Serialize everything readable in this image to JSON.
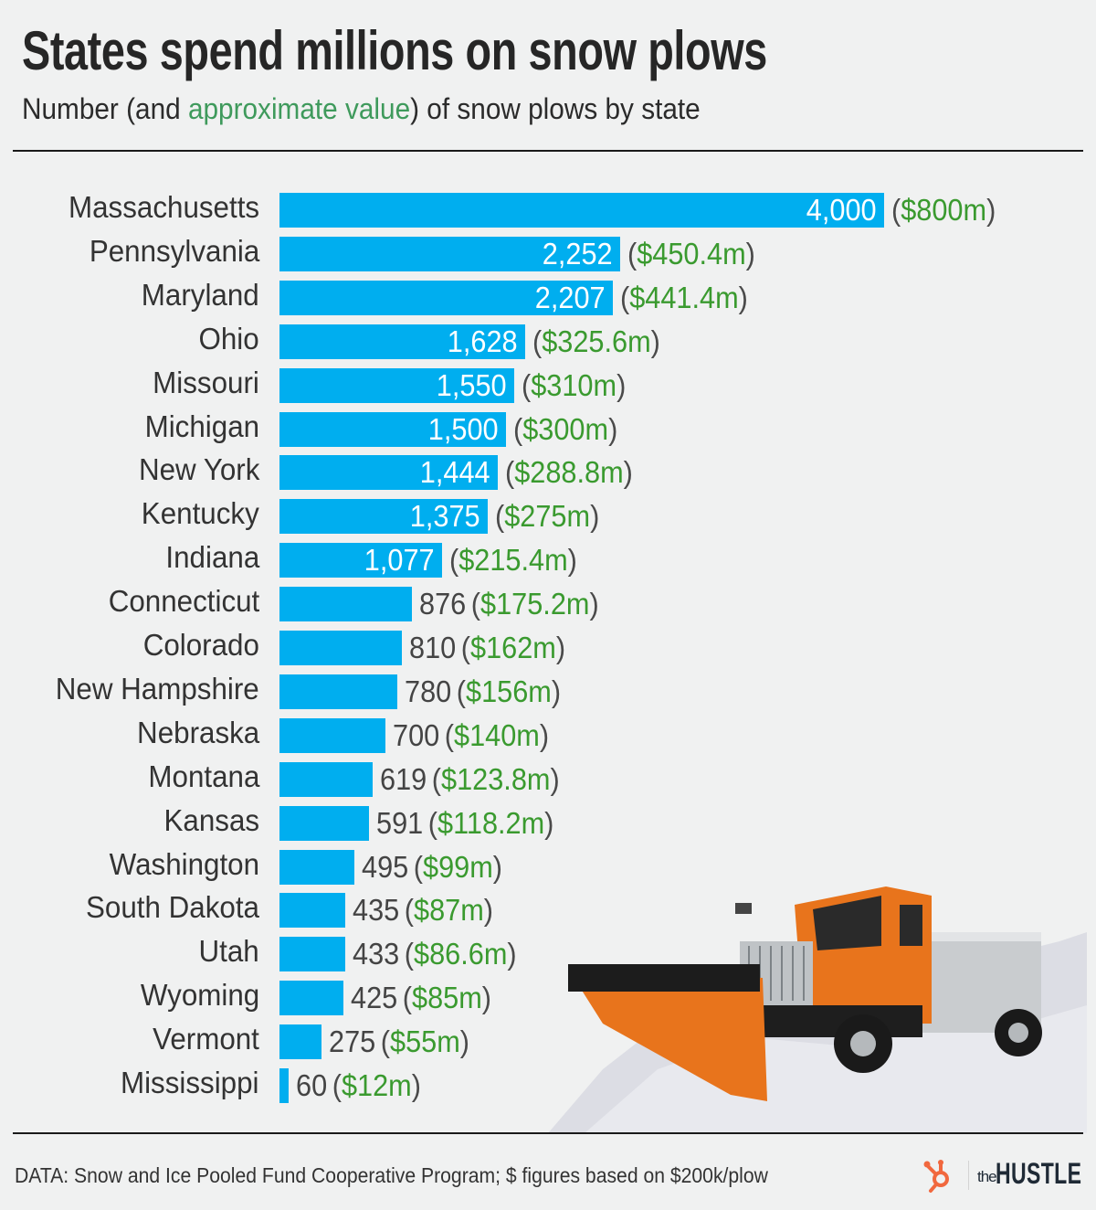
{
  "header": {
    "title": "States spend millions on snow plows",
    "subtitle_pre": "Number (and ",
    "subtitle_highlight": "approximate value",
    "subtitle_post": ") of snow plows by state"
  },
  "footer": {
    "source": "DATA: Snow and Ice Pooled Fund Cooperative Program; $ figures based on $200k/plow",
    "logo_small": "the",
    "logo_big": "HUSTLE"
  },
  "colors": {
    "bar": "#00aeef",
    "money": "#3a9a2f",
    "subtitle_highlight": "#3f9a5c",
    "background": "#f0f1f1",
    "logo_orange": "#f1683e",
    "logo_navy": "#1f2a36"
  },
  "rows": [
    {
      "state": "Massachusetts",
      "count": 4000,
      "count_label": "4,000",
      "value_label": "$800m",
      "inside": true
    },
    {
      "state": "Pennsylvania",
      "count": 2252,
      "count_label": "2,252",
      "value_label": "$450.4m",
      "inside": true
    },
    {
      "state": "Maryland",
      "count": 2207,
      "count_label": "2,207",
      "value_label": "$441.4m",
      "inside": true
    },
    {
      "state": "Ohio",
      "count": 1628,
      "count_label": "1,628",
      "value_label": "$325.6m",
      "inside": true
    },
    {
      "state": "Missouri",
      "count": 1550,
      "count_label": "1,550",
      "value_label": "$310m",
      "inside": true
    },
    {
      "state": "Michigan",
      "count": 1500,
      "count_label": "1,500",
      "value_label": "$300m",
      "inside": true
    },
    {
      "state": "New York",
      "count": 1444,
      "count_label": "1,444",
      "value_label": "$288.8m",
      "inside": true
    },
    {
      "state": "Kentucky",
      "count": 1375,
      "count_label": "1,375",
      "value_label": "$275m",
      "inside": true
    },
    {
      "state": "Indiana",
      "count": 1077,
      "count_label": "1,077",
      "value_label": "$215.4m",
      "inside": true
    },
    {
      "state": "Connecticut",
      "count": 876,
      "count_label": "876",
      "value_label": "$175.2m",
      "inside": false
    },
    {
      "state": "Colorado",
      "count": 810,
      "count_label": "810",
      "value_label": "$162m",
      "inside": false
    },
    {
      "state": "New Hampshire",
      "count": 780,
      "count_label": "780",
      "value_label": "$156m",
      "inside": false
    },
    {
      "state": "Nebraska",
      "count": 700,
      "count_label": "700",
      "value_label": "$140m",
      "inside": false
    },
    {
      "state": "Montana",
      "count": 619,
      "count_label": "619",
      "value_label": "$123.8m",
      "inside": false
    },
    {
      "state": "Kansas",
      "count": 591,
      "count_label": "591",
      "value_label": "$118.2m",
      "inside": false
    },
    {
      "state": "Washington",
      "count": 495,
      "count_label": "495",
      "value_label": "$99m",
      "inside": false
    },
    {
      "state": "South Dakota",
      "count": 435,
      "count_label": "435",
      "value_label": "$87m",
      "inside": false
    },
    {
      "state": "Utah",
      "count": 433,
      "count_label": "433",
      "value_label": "$86.6m",
      "inside": false
    },
    {
      "state": "Wyoming",
      "count": 425,
      "count_label": "425",
      "value_label": "$85m",
      "inside": false
    },
    {
      "state": "Vermont",
      "count": 275,
      "count_label": "275",
      "value_label": "$55m",
      "inside": false
    },
    {
      "state": "Mississippi",
      "count": 60,
      "count_label": "60",
      "value_label": "$12m",
      "inside": false
    }
  ],
  "chart_data": {
    "type": "bar",
    "orientation": "horizontal",
    "title": "States spend millions on snow plows",
    "subtitle": "Number (and approximate value) of snow plows by state",
    "xlabel": "",
    "ylabel": "",
    "grid": false,
    "legend": null,
    "categories": [
      "Massachusetts",
      "Pennsylvania",
      "Maryland",
      "Ohio",
      "Missouri",
      "Michigan",
      "New York",
      "Kentucky",
      "Indiana",
      "Connecticut",
      "Colorado",
      "New Hampshire",
      "Nebraska",
      "Montana",
      "Kansas",
      "Washington",
      "South Dakota",
      "Utah",
      "Wyoming",
      "Vermont",
      "Mississippi"
    ],
    "series": [
      {
        "name": "Number of snow plows",
        "values": [
          4000,
          2252,
          2207,
          1628,
          1550,
          1500,
          1444,
          1375,
          1077,
          876,
          810,
          780,
          700,
          619,
          591,
          495,
          435,
          433,
          425,
          275,
          60
        ]
      },
      {
        "name": "Approximate value ($m)",
        "values": [
          800,
          450.4,
          441.4,
          325.6,
          310,
          300,
          288.8,
          275,
          215.4,
          175.2,
          162,
          156,
          140,
          123.8,
          118.2,
          99,
          87,
          86.6,
          85,
          55,
          12
        ]
      }
    ],
    "xlim": [
      0,
      4000
    ],
    "annotations": [
      "DATA: Snow and Ice Pooled Fund Cooperative Program; $ figures based on $200k/plow"
    ]
  }
}
